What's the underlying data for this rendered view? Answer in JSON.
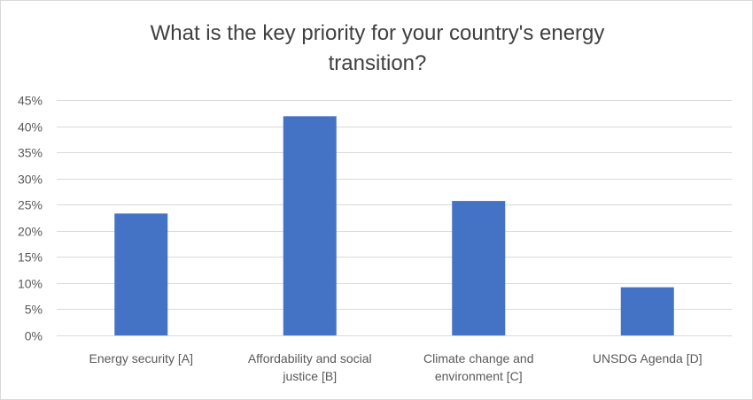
{
  "chart_data": {
    "type": "bar",
    "title_lines": [
      "What is the key priority for your country's energy",
      "transition?"
    ],
    "categories": [
      [
        "Energy security [A]"
      ],
      [
        "Affordability and social",
        "justice [B]"
      ],
      [
        "Climate change and",
        "environment [C]"
      ],
      [
        "UNSDG Agenda [D]"
      ]
    ],
    "values": [
      23.3,
      41.9,
      25.7,
      9.2
    ],
    "ylim": [
      0,
      45
    ],
    "ystep": 5,
    "ytick_labels": [
      "0%",
      "5%",
      "10%",
      "15%",
      "20%",
      "25%",
      "30%",
      "35%",
      "40%",
      "45%"
    ],
    "xlabel": "",
    "ylabel": "",
    "grid": true,
    "bar_color": "#4472c4",
    "grid_color": "#d9d9d9"
  }
}
